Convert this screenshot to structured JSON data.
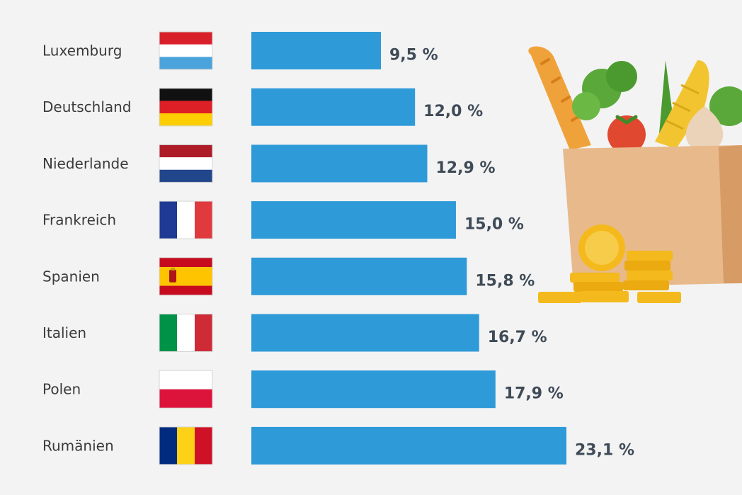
{
  "chart_data": {
    "type": "bar",
    "orientation": "horizontal",
    "categories": [
      "Luxemburg",
      "Deutschland",
      "Niederlande",
      "Frankreich",
      "Spanien",
      "Italien",
      "Polen",
      "Rumänien"
    ],
    "values": [
      9.5,
      12.0,
      12.9,
      15.0,
      15.8,
      16.7,
      17.9,
      23.1
    ],
    "value_labels": [
      "9,5 %",
      "12,0 %",
      "12,9 %",
      "15,0 %",
      "15,8 %",
      "16,7 %",
      "17,9 %",
      "23,1 %"
    ],
    "unit": "%",
    "title": "",
    "xlabel": "",
    "ylabel": "",
    "grid": false,
    "legend": "none",
    "bar_color": "#2f9ad8"
  },
  "flags": [
    {
      "country": "Luxemburg",
      "icon": "luxembourg-flag-icon",
      "stripes": "horizontal",
      "colors": [
        "#d8202b",
        "#ffffff",
        "#4ba3dc"
      ]
    },
    {
      "country": "Deutschland",
      "icon": "germany-flag-icon",
      "stripes": "horizontal",
      "colors": [
        "#111111",
        "#dd1f26",
        "#ffce00"
      ]
    },
    {
      "country": "Niederlande",
      "icon": "netherlands-flag-icon",
      "stripes": "horizontal",
      "colors": [
        "#ae1c28",
        "#ffffff",
        "#21468b"
      ]
    },
    {
      "country": "Frankreich",
      "icon": "france-flag-icon",
      "stripes": "vertical",
      "colors": [
        "#1f3a93",
        "#ffffff",
        "#e03a3e"
      ]
    },
    {
      "country": "Spanien",
      "icon": "spain-flag-icon",
      "stripes": "spain",
      "colors": [
        "#c60b1e",
        "#ffc400",
        "#c60b1e"
      ]
    },
    {
      "country": "Italien",
      "icon": "italy-flag-icon",
      "stripes": "vertical",
      "colors": [
        "#009246",
        "#ffffff",
        "#ce2b37"
      ]
    },
    {
      "country": "Polen",
      "icon": "poland-flag-icon",
      "stripes": "horizontal2",
      "colors": [
        "#ffffff",
        "#dc143c"
      ]
    },
    {
      "country": "Rumänien",
      "icon": "romania-flag-icon",
      "stripes": "vertical",
      "colors": [
        "#002b7f",
        "#fcd116",
        "#ce1126"
      ]
    }
  ],
  "illustration": {
    "icon": "grocery-bag-with-coins-icon",
    "colors": {
      "bag": "#e8b98a",
      "bag_side": "#d79b66",
      "bread": "#f0a23a",
      "greens": "#5aa83a",
      "corn": "#f2c530",
      "tomato": "#e0492f",
      "onion": "#ead3b8",
      "coin": "#f4b91c"
    }
  }
}
